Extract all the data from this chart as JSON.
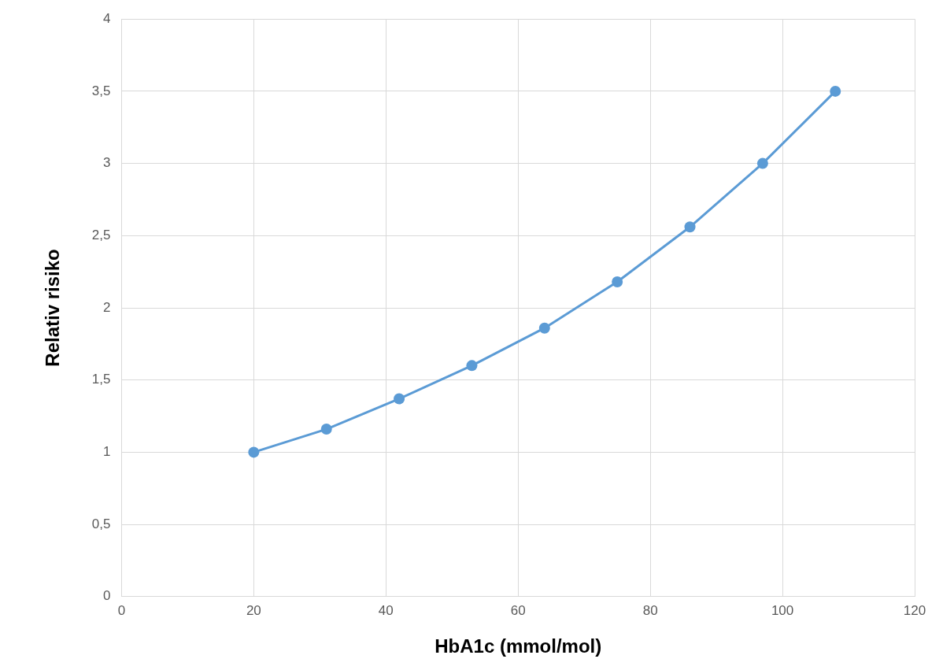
{
  "chart_data": {
    "type": "line",
    "xlabel": "HbA1c (mmol/mol)",
    "ylabel": "Relativ risiko",
    "x": [
      20,
      31,
      42,
      53,
      64,
      75,
      86,
      97,
      108
    ],
    "series": [
      {
        "color": "#5b9bd5",
        "values": [
          1,
          1.16,
          1.37,
          1.6,
          1.86,
          2.18,
          2.56,
          3,
          3.5
        ]
      }
    ],
    "xlim": [
      0,
      120
    ],
    "xticks": [
      0,
      20,
      40,
      60,
      80,
      100,
      120
    ],
    "ylim": [
      0,
      4
    ],
    "yticks": [
      0,
      {
        "value": 0.5,
        "label": "0,5"
      },
      1,
      {
        "value": 1.5,
        "label": "1,5"
      },
      2,
      {
        "value": 2.5,
        "label": "2,5"
      },
      3,
      {
        "value": 3.5,
        "label": "3,5"
      },
      4
    ],
    "grid": true,
    "legend": false,
    "marker": "circle",
    "line_style": "solid"
  }
}
